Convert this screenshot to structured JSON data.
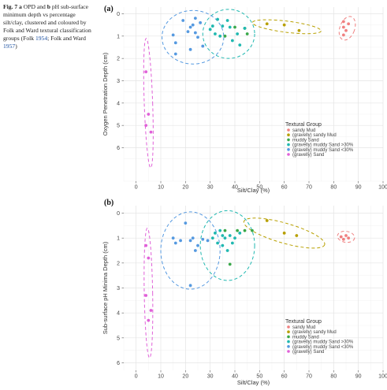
{
  "caption": {
    "fig_label": "Fig. 7",
    "p1_a": "a",
    "p1_text": " OPD and ",
    "p1_b": "b",
    "p1_rest": " pH sub-surface minimum depth vs percentage silt/clay, clustered and coloured by Folk and Ward textural classification groups (Folk ",
    "cite1": "1954",
    "p2": "; Folk and Ward ",
    "cite2": "1957",
    "p3": ")"
  },
  "colors": {
    "sandy Mud": "#f08080",
    "(gravelly) sandy Mud": "#b8a000",
    "muddy Sand": "#3aa84a",
    "(gravelly) muddy Sand >30%": "#20b8b0",
    "(gravelly) muddy Sand <30%": "#5599e0",
    "(gravelly) Sand": "#e060d8"
  },
  "chart_data": [
    {
      "type": "scatter",
      "panel": "(a)",
      "xlabel": "Silt/Clay (%)",
      "ylabel": "Oxygen Penetration Depth (cm)",
      "xlim": [
        -5,
        100
      ],
      "ylim": [
        -0.3,
        7.5
      ],
      "x_ticks": [
        0,
        10,
        20,
        30,
        40,
        50,
        60,
        70,
        80,
        90,
        100
      ],
      "y_ticks": [
        0,
        1,
        2,
        3,
        4,
        5,
        6
      ],
      "y_inverted": true,
      "grid": true,
      "legend": {
        "title": "Textural Group",
        "placement": "bottom-right",
        "entries": [
          "sandy Mud",
          "(gravelly) sandy Mud",
          "muddy Sand",
          "(gravelly) muddy Sand >30%",
          "(gravelly) muddy Sand <30%",
          "(gravelly) Sand"
        ]
      },
      "series": [
        {
          "name": "sandy Mud",
          "points": [
            [
              84,
              0.35
            ],
            [
              86,
              0.45
            ],
            [
              84,
              0.6
            ],
            [
              85,
              0.75
            ],
            [
              84,
              0.95
            ]
          ]
        },
        {
          "name": "(gravelly) sandy Mud",
          "points": [
            [
              53,
              0.45
            ],
            [
              60,
              0.5
            ],
            [
              66,
              0.75
            ]
          ]
        },
        {
          "name": "muddy Sand",
          "points": [
            [
              40,
              0.6
            ],
            [
              36,
              1.0
            ],
            [
              44,
              0.65
            ],
            [
              45,
              0.9
            ]
          ]
        },
        {
          "name": "(gravelly) muddy Sand >30%",
          "points": [
            [
              31,
              0.55
            ],
            [
              32,
              0.9
            ],
            [
              33,
              0.25
            ],
            [
              34,
              1.0
            ],
            [
              35,
              0.55
            ],
            [
              37,
              0.3
            ],
            [
              38,
              0.6
            ],
            [
              39,
              1.2
            ],
            [
              41,
              0.9
            ],
            [
              42,
              1.4
            ],
            [
              44,
              0.65
            ],
            [
              30,
              0.7
            ]
          ]
        },
        {
          "name": "(gravelly) muddy Sand <30%",
          "points": [
            [
              15,
              0.95
            ],
            [
              16,
              1.3
            ],
            [
              16,
              1.8
            ],
            [
              19,
              0.3
            ],
            [
              21,
              0.8
            ],
            [
              22,
              0.6
            ],
            [
              23,
              0.5
            ],
            [
              24,
              0.2
            ],
            [
              24,
              0.85
            ],
            [
              25,
              1.05
            ],
            [
              26,
              0.4
            ],
            [
              27,
              1.45
            ],
            [
              22,
              1.6
            ]
          ]
        },
        {
          "name": "(gravelly) Sand",
          "points": [
            [
              4,
              2.6
            ],
            [
              5,
              4.5
            ],
            [
              4,
              5.0
            ],
            [
              6,
              5.3
            ]
          ]
        }
      ]
    },
    {
      "type": "scatter",
      "panel": "(b)",
      "xlabel": "Silt/Clay (%)",
      "ylabel": "Sub-surface pH Minima Depth (cm)",
      "xlim": [
        -5,
        100
      ],
      "ylim": [
        -0.3,
        6.3
      ],
      "x_ticks": [
        0,
        10,
        20,
        30,
        40,
        50,
        60,
        70,
        80,
        90,
        100
      ],
      "y_ticks": [
        0,
        1,
        2,
        3,
        4,
        5,
        6
      ],
      "y_inverted": true,
      "grid": true,
      "legend": {
        "title": "Textural Group",
        "placement": "bottom-right",
        "entries": [
          "sandy Mud",
          "(gravelly) sandy Mud",
          "muddy Sand",
          "(gravelly) muddy Sand >30%",
          "(gravelly) muddy Sand <30%",
          "(gravelly) Sand"
        ]
      },
      "series": [
        {
          "name": "sandy Mud",
          "points": [
            [
              83,
              0.95
            ],
            [
              85,
              0.9
            ],
            [
              86,
              1.0
            ],
            [
              84,
              1.05
            ]
          ]
        },
        {
          "name": "(gravelly) sandy Mud",
          "points": [
            [
              53,
              0.3
            ],
            [
              60,
              0.8
            ],
            [
              65,
              0.9
            ]
          ]
        },
        {
          "name": "muddy Sand",
          "points": [
            [
              36,
              0.7
            ],
            [
              38,
              2.05
            ],
            [
              41,
              0.7
            ],
            [
              44,
              0.7
            ],
            [
              47,
              0.7
            ]
          ]
        },
        {
          "name": "(gravelly) muddy Sand >30%",
          "points": [
            [
              31,
              1.0
            ],
            [
              32,
              0.8
            ],
            [
              33,
              1.2
            ],
            [
              34,
              0.7
            ],
            [
              35,
              0.9
            ],
            [
              35,
              1.3
            ],
            [
              36,
              1.0
            ],
            [
              37,
              1.5
            ],
            [
              38,
              0.9
            ],
            [
              39,
              1.2
            ],
            [
              40,
              1.0
            ],
            [
              42,
              0.8
            ]
          ]
        },
        {
          "name": "(gravelly) muddy Sand <30%",
          "points": [
            [
              15,
              1.0
            ],
            [
              16,
              1.2
            ],
            [
              18,
              1.1
            ],
            [
              20,
              0.4
            ],
            [
              22,
              1.1
            ],
            [
              23,
              1.0
            ],
            [
              24,
              1.5
            ],
            [
              25,
              1.3
            ],
            [
              27,
              1.05
            ],
            [
              29,
              1.1
            ],
            [
              22,
              2.9
            ]
          ]
        },
        {
          "name": "(gravelly) Sand",
          "points": [
            [
              4,
              1.3
            ],
            [
              5,
              1.8
            ],
            [
              4,
              3.3
            ],
            [
              6,
              3.9
            ],
            [
              5,
              4.3
            ]
          ]
        }
      ]
    }
  ]
}
